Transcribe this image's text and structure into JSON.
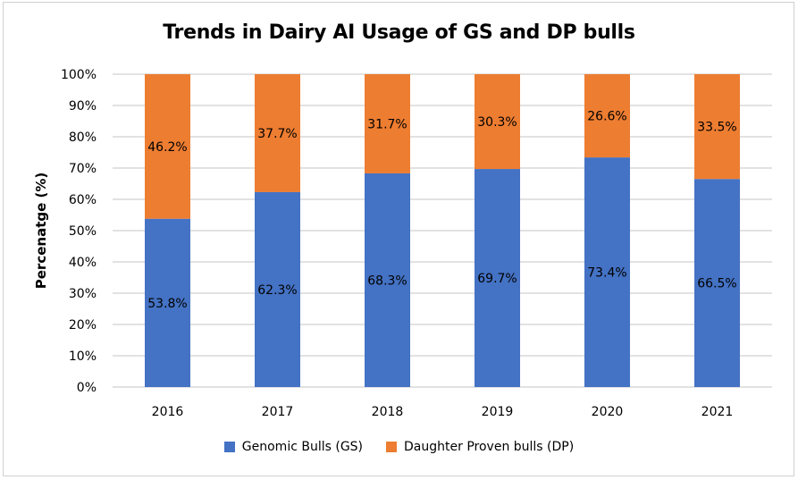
{
  "chart_data": {
    "type": "bar",
    "stacked": true,
    "title": "Trends in Dairy AI Usage of GS and DP bulls",
    "xlabel": "",
    "ylabel": "Percenatge (%)",
    "ylim": [
      0,
      100
    ],
    "yticks": [
      "0%",
      "10%",
      "20%",
      "30%",
      "40%",
      "50%",
      "60%",
      "70%",
      "80%",
      "90%",
      "100%"
    ],
    "grid": true,
    "legend_position": "bottom",
    "categories": [
      "2016",
      "2017",
      "2018",
      "2019",
      "2020",
      "2021"
    ],
    "series": [
      {
        "name": "Genomic Bulls (GS)",
        "color": "#4472c4",
        "values": [
          53.8,
          62.3,
          68.3,
          69.7,
          73.4,
          66.5
        ],
        "labels": [
          "53.8%",
          "62.3%",
          "68.3%",
          "69.7%",
          "73.4%",
          "66.5%"
        ]
      },
      {
        "name": "Daughter Proven bulls (DP)",
        "color": "#ed7d31",
        "values": [
          46.2,
          37.7,
          31.7,
          30.3,
          26.6,
          33.5
        ],
        "labels": [
          "46.2%",
          "37.7%",
          "31.7%",
          "30.3%",
          "26.6%",
          "33.5%"
        ]
      }
    ]
  }
}
